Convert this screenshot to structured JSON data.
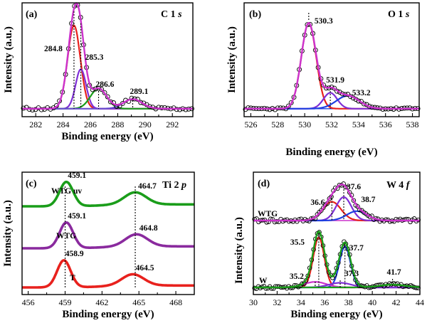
{
  "chart_data": [
    {
      "type": "line",
      "panel": "(a)",
      "title": "C 1s",
      "xlabel": "Binding energy (eV)",
      "ylabel": "Intensity (a.u.)",
      "xlim": [
        281,
        293.5
      ],
      "xticks": [
        282,
        284,
        286,
        288,
        290,
        292
      ],
      "baseline_frac": 0.93,
      "colors": {
        "envelope": "#cc33cc",
        "data": "#000000",
        "background": "#cc33cc"
      },
      "components": [
        {
          "center": 284.8,
          "fwhm": 1.1,
          "amp": 0.78,
          "color": "#e8211d"
        },
        {
          "center": 285.3,
          "fwhm": 0.9,
          "amp": 0.37,
          "color": "#7f2fd6"
        },
        {
          "center": 286.6,
          "fwhm": 1.4,
          "amp": 0.19,
          "color": "#1a9d1a"
        },
        {
          "center": 289.1,
          "fwhm": 1.6,
          "amp": 0.09,
          "color": "#6a4fd0"
        }
      ],
      "annotations": [
        {
          "text": "284.8",
          "x": 284.8
        },
        {
          "text": "285.3",
          "x": 285.3
        },
        {
          "text": "286.6",
          "x": 286.6
        },
        {
          "text": "289.1",
          "x": 289.1
        }
      ]
    },
    {
      "type": "line",
      "panel": "(b)",
      "title": "O 1s",
      "xlabel": "Binding energy (eV)",
      "ylabel": "Intensity (a.u.)",
      "xlim": [
        525.5,
        538.5
      ],
      "xticks": [
        526,
        528,
        530,
        532,
        534,
        536,
        538
      ],
      "baseline_frac": 0.93,
      "colors": {
        "envelope": "#cc33cc",
        "data": "#000000",
        "background": "#1f3fe0"
      },
      "components": [
        {
          "center": 530.3,
          "fwhm": 1.3,
          "amp": 0.86,
          "color": "#e8211d"
        },
        {
          "center": 531.9,
          "fwhm": 1.2,
          "amp": 0.16,
          "color": "#7f2fd6"
        },
        {
          "center": 533.2,
          "fwhm": 2.0,
          "amp": 0.13,
          "color": "#1f3fe0"
        }
      ],
      "annotations": [
        {
          "text": "530.3",
          "x": 530.3
        },
        {
          "text": "531.9",
          "x": 531.9
        },
        {
          "text": "533.2",
          "x": 533.2
        }
      ]
    },
    {
      "type": "line",
      "panel": "(c)",
      "title": "Ti 2p",
      "xlabel": "Binding energy (eV)",
      "ylabel": "Intensity (a.u.)",
      "xlim": [
        455.5,
        469.5
      ],
      "xticks": [
        456,
        459,
        462,
        465,
        468
      ],
      "series": [
        {
          "name": "WTG uv",
          "color": "#1a9d1a",
          "peaks": [
            459.1,
            464.7
          ],
          "annotations": [
            "459.1",
            "464.7"
          ]
        },
        {
          "name": "WTG",
          "color": "#8a2a9e",
          "peaks": [
            459.1,
            464.8
          ],
          "annotations": [
            "459.1",
            "464.8"
          ]
        },
        {
          "name": "T",
          "color": "#e8211d",
          "peaks": [
            458.9,
            464.5
          ],
          "annotations": [
            "458.9",
            "464.5"
          ]
        }
      ]
    },
    {
      "type": "line",
      "panel": "(d)",
      "title": "W 4f",
      "xlabel": "Binding energy (eV)",
      "ylabel": "Intensity (a.u.)",
      "xlim": [
        30,
        44
      ],
      "xticks": [
        30,
        32,
        34,
        36,
        38,
        40,
        42,
        44
      ],
      "series": [
        {
          "name": "WTG",
          "envelope_color": "#cc33cc",
          "components": [
            {
              "center": 36.6,
              "fwhm": 1.8,
              "amp": 0.24,
              "color": "#e8211d"
            },
            {
              "center": 37.6,
              "fwhm": 1.5,
              "amp": 0.3,
              "color": "#7f2fd6"
            },
            {
              "center": 38.7,
              "fwhm": 2.0,
              "amp": 0.12,
              "color": "#1f3fe0"
            }
          ],
          "annotations": [
            {
              "text": "36.6",
              "x": 36.6
            },
            {
              "text": "37.6",
              "x": 37.6
            },
            {
              "text": "38.7",
              "x": 38.7
            }
          ]
        },
        {
          "name": "W",
          "envelope_color": "#1a9d1a",
          "components": [
            {
              "center": 35.5,
              "fwhm": 1.1,
              "amp": 0.54,
              "color": "#e8211d"
            },
            {
              "center": 37.7,
              "fwhm": 1.1,
              "amp": 0.44,
              "color": "#1f3fe0"
            },
            {
              "center": 35.2,
              "fwhm": 2.2,
              "amp": 0.06,
              "color": "#cc33cc"
            },
            {
              "center": 37.3,
              "fwhm": 2.2,
              "amp": 0.05,
              "color": "#7f2fd6"
            },
            {
              "center": 41.7,
              "fwhm": 2.5,
              "amp": 0.03,
              "color": "#1a9d1a"
            }
          ],
          "annotations": [
            {
              "text": "35.5",
              "x": 35.5
            },
            {
              "text": "37.7",
              "x": 37.7
            },
            {
              "text": "35.2",
              "x": 35.2
            },
            {
              "text": "37.3",
              "x": 37.3
            },
            {
              "text": "41.7",
              "x": 41.7
            }
          ]
        }
      ]
    }
  ]
}
